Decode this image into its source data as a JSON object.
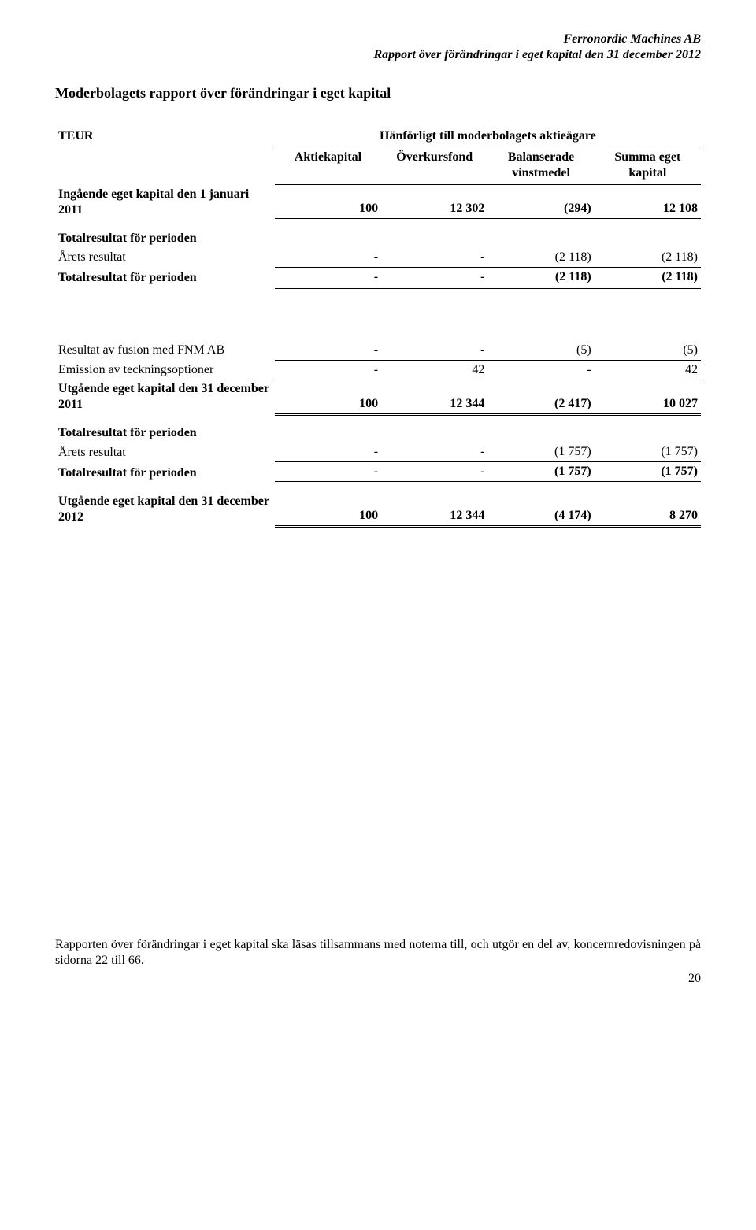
{
  "header": {
    "company": "Ferronordic Machines AB",
    "report_line": "Rapport över förändringar i eget kapital den 31 december 2012"
  },
  "title": "Moderbolagets rapport över förändringar i eget kapital",
  "table": {
    "currency_label": "TEUR",
    "super_header": "Hänförligt till moderbolagets aktieägare",
    "columns": {
      "c1": "Aktiekapital",
      "c2": "Överkursfond",
      "c3": "Balanserade vinstmedel",
      "c4": "Summa eget kapital"
    },
    "rows": [
      {
        "label": "Ingående eget kapital den 1 januari 2011",
        "bold": true,
        "c1": "100",
        "c2": "12 302",
        "c3": "(294)",
        "c4": "12 108",
        "style": "double"
      },
      {
        "label": "Totalresultat för perioden",
        "bold": true,
        "section": true
      },
      {
        "label": "Årets resultat",
        "c1": "-",
        "c2": "-",
        "c3": "(2 118)",
        "c4": "(2 118)",
        "style": "underline"
      },
      {
        "label": "Totalresultat för perioden",
        "bold": true,
        "c1": "-",
        "c2": "-",
        "c3": "(2 118)",
        "c4": "(2 118)",
        "style": "topdouble"
      },
      {
        "gap": "big"
      },
      {
        "label": "Resultat av fusion med FNM AB",
        "c1": "-",
        "c2": "-",
        "c3": "(5)",
        "c4": "(5)",
        "style": "underline"
      },
      {
        "label": "Emission av teckningsoptioner",
        "c1": "-",
        "c2": "42",
        "c3": "-",
        "c4": "42",
        "style": "underline"
      },
      {
        "label": "Utgående eget kapital den 31 december 2011",
        "bold": true,
        "c1": "100",
        "c2": "12 344",
        "c3": "(2 417)",
        "c4": "10 027",
        "style": "topdouble"
      },
      {
        "label": "Totalresultat för perioden",
        "bold": true,
        "section": true
      },
      {
        "label": "Årets resultat",
        "c1": "-",
        "c2": "-",
        "c3": "(1 757)",
        "c4": "(1 757)",
        "style": "underline"
      },
      {
        "label": "Totalresultat för perioden",
        "bold": true,
        "c1": "-",
        "c2": "-",
        "c3": "(1 757)",
        "c4": "(1 757)",
        "style": "topdouble"
      },
      {
        "label": "Utgående eget kapital den 31 december 2012",
        "bold": true,
        "c1": "100",
        "c2": "12 344",
        "c3": "(4 174)",
        "c4": "8 270",
        "style": "topdouble",
        "section": true
      }
    ]
  },
  "footnote": "Rapporten över förändringar i eget kapital ska läsas tillsammans med noterna till, och utgör en del av, koncernredovisningen på sidorna 22 till 66.",
  "page_number": "20"
}
